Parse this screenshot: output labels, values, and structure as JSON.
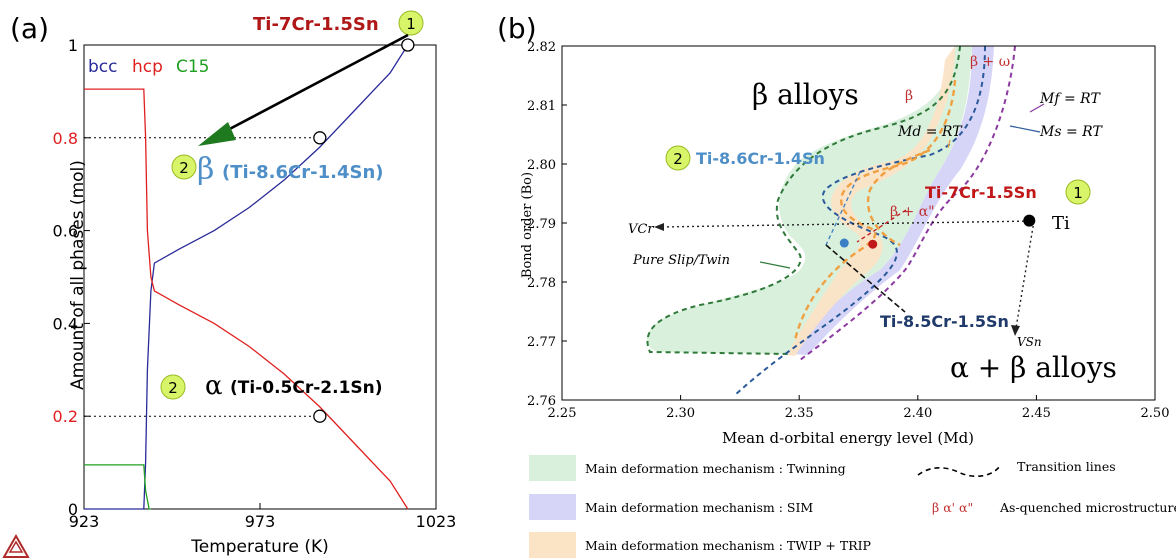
{
  "panel_a": {
    "panel_label": "(a)",
    "legend": [
      {
        "label": "bcc",
        "color": "#2a2a9a"
      },
      {
        "label": "hcp",
        "color": "#e02020"
      },
      {
        "label": "C15",
        "color": "#20a020"
      }
    ],
    "top_alloy": {
      "text": "Ti-7Cr-1.5Sn",
      "badge": "1"
    },
    "beta_annotation": {
      "badge": "2",
      "symbol": "β",
      "composition": "(Ti-8.6Cr-1.4Sn)"
    },
    "alpha_annotation": {
      "badge": "2",
      "symbol": "α",
      "composition": "(Ti-0.5Cr-2.1Sn)"
    }
  },
  "panel_b": {
    "panel_label": "(b)",
    "region_beta": "β alloys",
    "region_alpha_beta": "α + β alloys",
    "label_beta": "β",
    "label_beta_omega": "β + ω",
    "label_beta_alpha": "β + α\"",
    "label_mf": "Mf = RT",
    "label_ms": "Ms = RT",
    "label_md": "Md = RT",
    "label_vcr": "VCr",
    "label_vsn": "VSn",
    "label_pure_slip": "Pure Slip/Twin",
    "label_ti": "Ti",
    "point1": {
      "text": "Ti-7Cr-1.5Sn",
      "badge": "1"
    },
    "point2": {
      "text": "Ti-8.6Cr-1.4Sn",
      "badge": "2"
    },
    "point3": {
      "text": "Ti-8.5Cr-1.5Sn"
    }
  },
  "legend_b": [
    {
      "swatch": "#d9f0dc",
      "text": "Main deformation mechanism : Twinning"
    },
    {
      "swatch": "#d6d4f7",
      "text": "Main deformation mechanism : SIM"
    },
    {
      "swatch": "#fbe3c6",
      "text": "Main deformation mechanism : TWIP + TRIP"
    },
    {
      "line": "Transition lines"
    },
    {
      "symbols": "β α' α\"",
      "text": "As-quenched microstructure"
    }
  ],
  "chart_data": [
    {
      "type": "line",
      "title": "",
      "xlabel": "Temperature (K)",
      "ylabel": "Amount of all phases (mol)",
      "xlim": [
        923,
        1023
      ],
      "ylim": [
        0,
        1
      ],
      "xticks": [
        923,
        973,
        1023
      ],
      "yticks": [
        0,
        0.2,
        0.4,
        0.6,
        0.8,
        1
      ],
      "ytick_labels": [
        "0",
        "0.2",
        "0.4",
        "0.6",
        "0.8",
        "1"
      ],
      "red_ticks": [
        0.2,
        0.8
      ],
      "series": [
        {
          "name": "bcc",
          "color": "#2a2a9a",
          "x": [
            923,
            940,
            940.5,
            941,
            942,
            943,
            950,
            960,
            970,
            980,
            990,
            1000,
            1010,
            1015
          ],
          "y": [
            0,
            0,
            0.1,
            0.3,
            0.47,
            0.53,
            0.56,
            0.6,
            0.65,
            0.71,
            0.78,
            0.86,
            0.94,
            1.0
          ]
        },
        {
          "name": "hcp",
          "color": "#e02020",
          "x": [
            923,
            940,
            940.5,
            941,
            942,
            943,
            950,
            960,
            970,
            980,
            990,
            1000,
            1010,
            1015
          ],
          "y": [
            0.905,
            0.905,
            0.8,
            0.6,
            0.5,
            0.47,
            0.44,
            0.4,
            0.35,
            0.29,
            0.22,
            0.14,
            0.06,
            0
          ]
        },
        {
          "name": "C15",
          "color": "#20a020",
          "x": [
            923,
            940,
            940.5,
            941.5,
            942
          ],
          "y": [
            0.095,
            0.095,
            0.04,
            0.0,
            0
          ]
        }
      ],
      "guides": [
        {
          "y": 0.8,
          "x_end": 990
        },
        {
          "y": 0.2,
          "x_end": 990
        }
      ],
      "markers": [
        {
          "x": 990,
          "y": 0.8
        },
        {
          "x": 990,
          "y": 0.2
        },
        {
          "x": 1015,
          "y": 1.0
        }
      ]
    },
    {
      "type": "area",
      "title": "",
      "xlabel": "Mean d-orbital energy level (Md)",
      "ylabel": "Bond order (Bo)",
      "xlim": [
        2.25,
        2.5
      ],
      "ylim": [
        2.76,
        2.82
      ],
      "xticks": [
        2.25,
        2.3,
        2.35,
        2.4,
        2.45,
        2.5
      ],
      "yticks": [
        2.76,
        2.77,
        2.78,
        2.79,
        2.8,
        2.81,
        2.82
      ],
      "points": [
        {
          "name": "Ti",
          "x": 2.447,
          "y": 2.7904,
          "color": "#000000"
        },
        {
          "name": "Ti-8.6Cr-1.4Sn",
          "x": 2.369,
          "y": 2.7866,
          "color": "#3b7fc4"
        },
        {
          "name": "Ti-7Cr-1.5Sn",
          "x": 2.381,
          "y": 2.7864,
          "color": "#c01818"
        }
      ]
    }
  ]
}
